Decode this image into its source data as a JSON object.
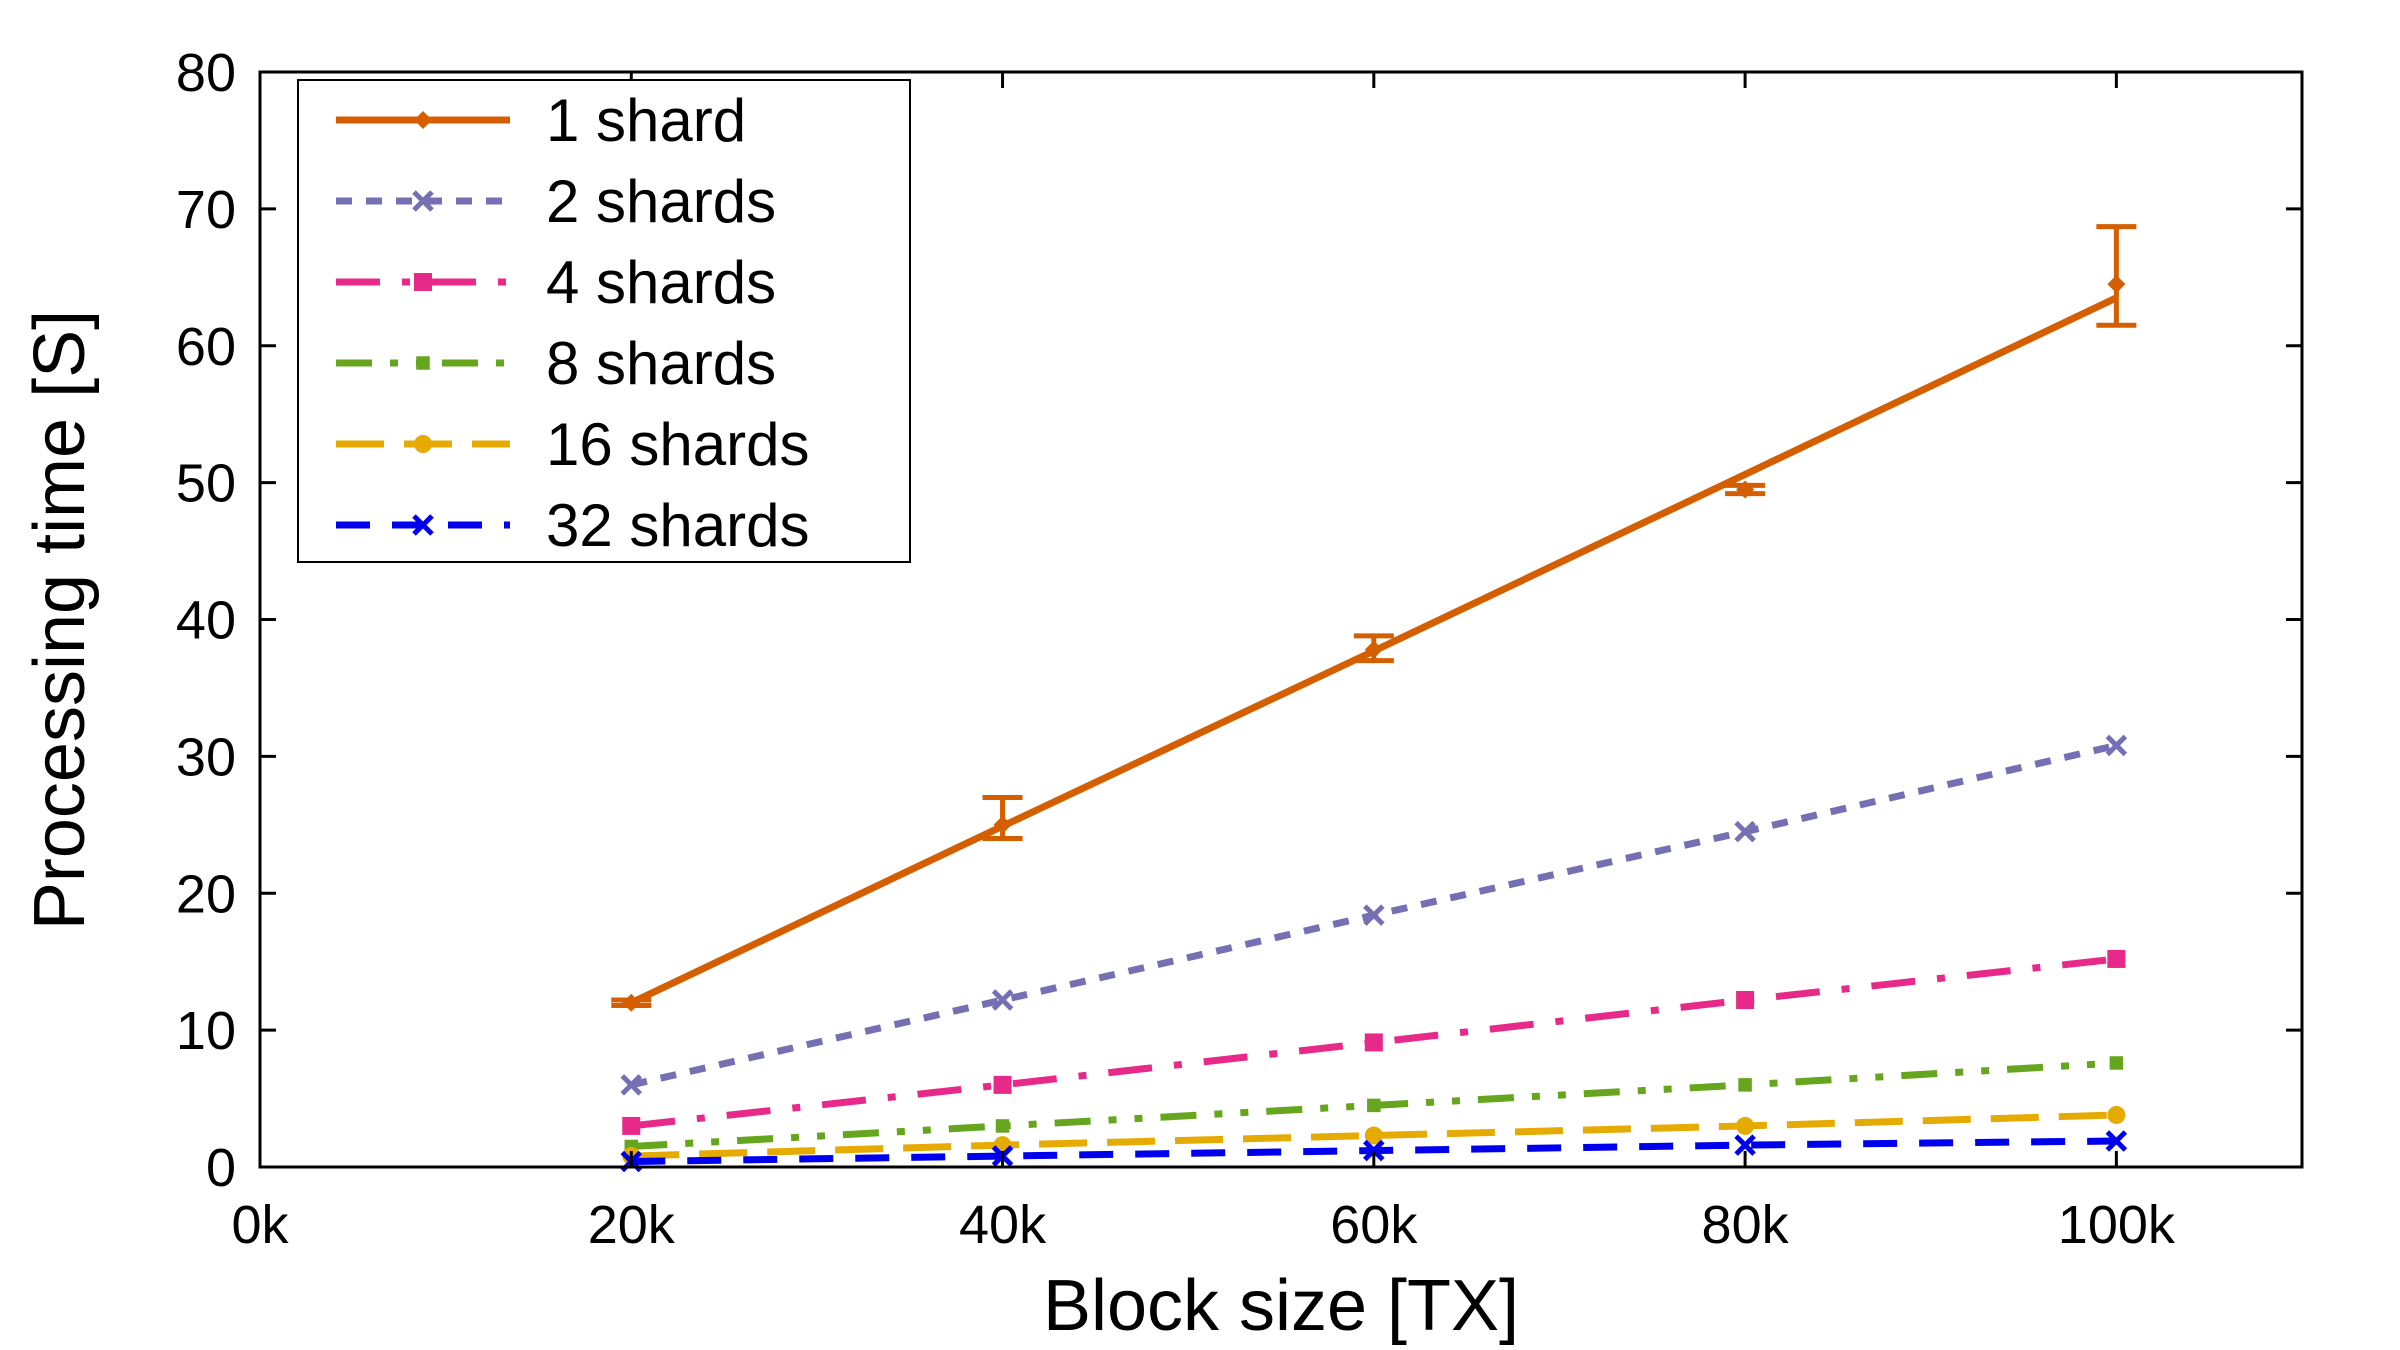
{
  "chart_data": {
    "type": "line",
    "title": "",
    "xlabel": "Block size [TX]",
    "ylabel": "Processing time [S]",
    "xlim": [
      0,
      110000
    ],
    "ylim": [
      0,
      80
    ],
    "xticks": [
      0,
      20000,
      40000,
      60000,
      80000,
      100000
    ],
    "xtick_labels": [
      "0k",
      "20k",
      "40k",
      "60k",
      "80k",
      "100k"
    ],
    "yticks": [
      0,
      10,
      20,
      30,
      40,
      50,
      60,
      70,
      80
    ],
    "ytick_labels": [
      "0",
      "10",
      "20",
      "30",
      "40",
      "50",
      "60",
      "70",
      "80"
    ],
    "grid": false,
    "legend_position": "top-left",
    "x": [
      20000,
      40000,
      60000,
      80000,
      100000
    ],
    "series": [
      {
        "name": "1 shard",
        "values": [
          12.0,
          25.0,
          37.8,
          49.5,
          64.5
        ],
        "fit": [
          12.0,
          24.9,
          37.7,
          50.6,
          63.5
        ],
        "error_low": [
          11.8,
          24.0,
          37.0,
          49.2,
          61.5
        ],
        "error_high": [
          12.2,
          27.0,
          38.8,
          49.8,
          68.7
        ],
        "color": "#d55e00",
        "dash": "solid",
        "marker": "diamond"
      },
      {
        "name": "2 shards",
        "values": [
          6.0,
          12.2,
          18.4,
          24.5,
          30.8
        ],
        "color": "#7570b3",
        "dash": "short-dash",
        "marker": "x"
      },
      {
        "name": "4 shards",
        "values": [
          3.0,
          6.0,
          9.1,
          12.2,
          15.2
        ],
        "color": "#e7298a",
        "dash": "dash-dot",
        "marker": "square"
      },
      {
        "name": "8 shards",
        "values": [
          1.5,
          3.0,
          4.5,
          6.0,
          7.6
        ],
        "color": "#66a61e",
        "dash": "dash-dot-dot",
        "marker": "square-small"
      },
      {
        "name": "16 shards",
        "values": [
          0.8,
          1.6,
          2.3,
          3.0,
          3.8
        ],
        "color": "#e6ab02",
        "dash": "long-dash",
        "marker": "circle"
      },
      {
        "name": "32 shards",
        "values": [
          0.4,
          0.8,
          1.2,
          1.6,
          1.9
        ],
        "color": "#0000ee",
        "dash": "dash",
        "marker": "x"
      }
    ]
  }
}
